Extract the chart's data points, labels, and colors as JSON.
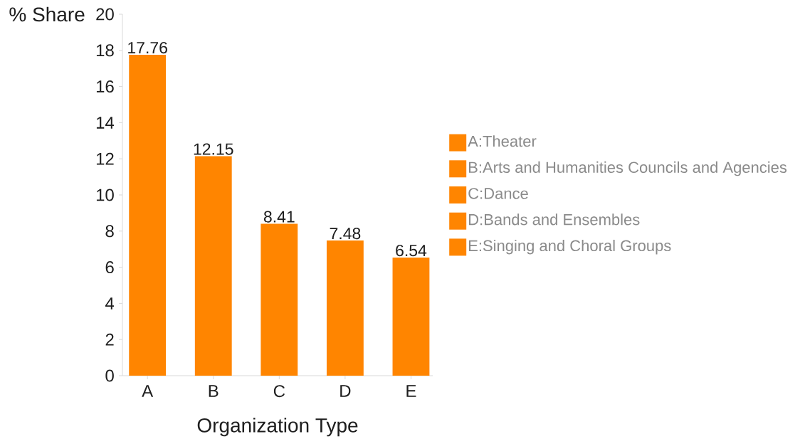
{
  "chart_data": {
    "type": "bar",
    "xlabel": "Organization Type",
    "ylabel": "% Share",
    "categories": [
      "A",
      "B",
      "C",
      "D",
      "E"
    ],
    "stacked": true,
    "series": [
      {
        "name": "A:Theater",
        "color": "#ff8500",
        "values": [
          17.76,
          null,
          null,
          null,
          null
        ]
      },
      {
        "name": "B:Arts and Humanities Councils and Agencies",
        "color": "#ff8500",
        "values": [
          null,
          12.15,
          null,
          null,
          null
        ]
      },
      {
        "name": "C:Dance",
        "color": "#ff8500",
        "values": [
          null,
          null,
          8.41,
          null,
          null
        ]
      },
      {
        "name": "D:Bands and Ensembles",
        "color": "#ff8500",
        "values": [
          null,
          null,
          null,
          7.48,
          null
        ]
      },
      {
        "name": "E:Singing and Choral Groups",
        "color": "#ff8500",
        "values": [
          null,
          null,
          null,
          null,
          6.54
        ]
      }
    ],
    "ylim": [
      0,
      20
    ],
    "yticks": [
      0,
      2,
      4,
      6,
      8,
      10,
      12,
      14,
      16,
      18,
      20
    ],
    "data_labels": true,
    "legend": "right"
  }
}
